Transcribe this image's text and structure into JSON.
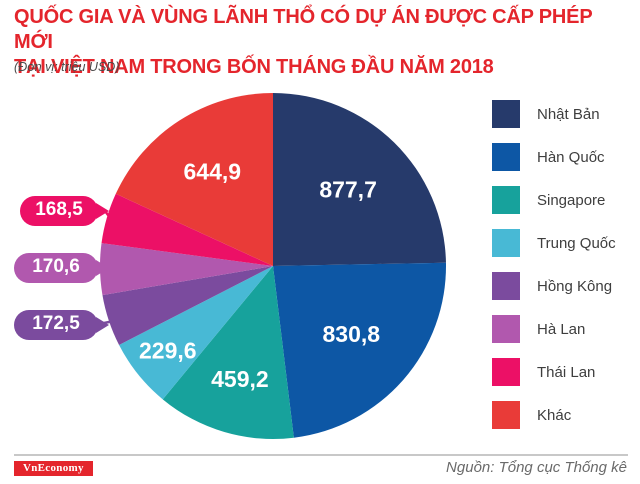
{
  "header": {
    "title": "QUỐC GIA VÀ VÙNG LÃNH THỔ CÓ DỰ ÁN ĐƯỢC CẤP PHÉP MỚI\nTẠI VIỆT NAM TRONG BỐN THÁNG ĐẦU NĂM 2018",
    "title_color": "#e4252c",
    "unit_note": "(Đơn vị: triệu USD)"
  },
  "chart_data": {
    "type": "pie",
    "title": "Quốc gia và vùng lãnh thổ có dự án được cấp phép mới tại Việt Nam trong bốn tháng đầu năm 2018",
    "unit": "triệu USD",
    "legend_position": "right",
    "start_angle_deg": 0,
    "direction": "clockwise",
    "slices": [
      {
        "name": "Nhật Bản",
        "value": 877.7,
        "display": "877,7",
        "color": "#263a6b",
        "label_placement": "inside"
      },
      {
        "name": "Hàn Quốc",
        "value": 830.8,
        "display": "830,8",
        "color": "#0d57a5",
        "label_placement": "inside"
      },
      {
        "name": "Singapore",
        "value": 459.2,
        "display": "459,2",
        "color": "#17a29c",
        "label_placement": "inside"
      },
      {
        "name": "Trung Quốc",
        "value": 229.6,
        "display": "229,6",
        "color": "#48b9d5",
        "label_placement": "inside"
      },
      {
        "name": "Hồng Kông",
        "value": 172.5,
        "display": "172,5",
        "color": "#7b4b9e",
        "label_placement": "callout"
      },
      {
        "name": "Hà Lan",
        "value": 170.6,
        "display": "170,6",
        "color": "#b158ae",
        "label_placement": "callout"
      },
      {
        "name": "Thái Lan",
        "value": 168.5,
        "display": "168,5",
        "color": "#ec1066",
        "label_placement": "callout"
      },
      {
        "name": "Khác",
        "value": 644.9,
        "display": "644,9",
        "color": "#e93b38",
        "label_placement": "inside"
      }
    ]
  },
  "footer": {
    "logo_text": "VnEconomy",
    "logo_bg": "#e4252c",
    "source": "Nguồn: Tổng cục Thống kê"
  }
}
